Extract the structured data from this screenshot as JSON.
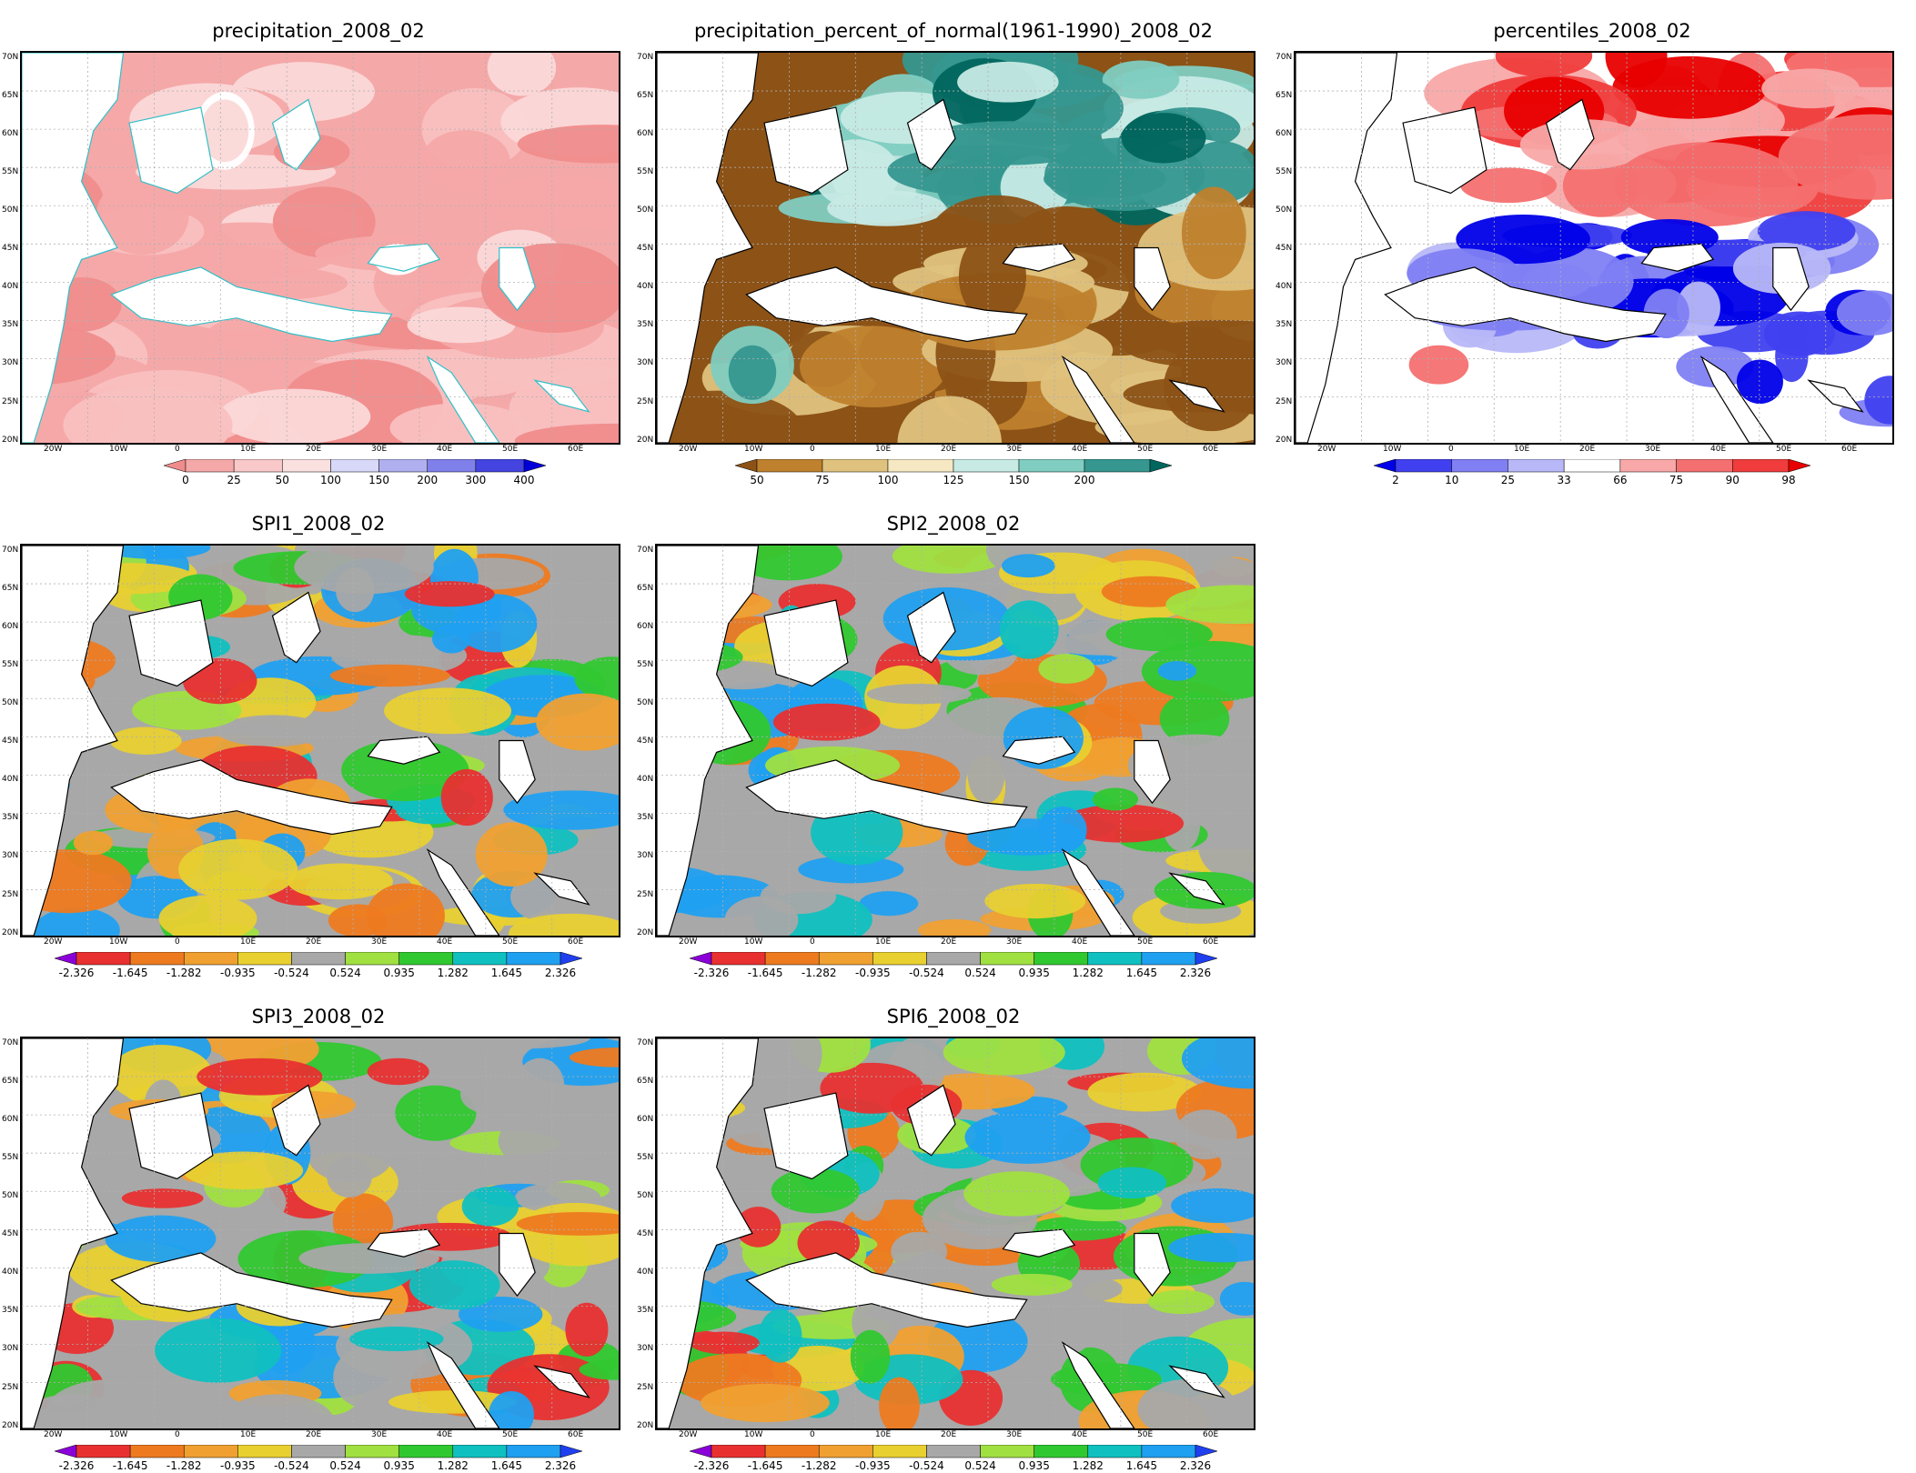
{
  "lat_ticks": [
    "70N",
    "65N",
    "60N",
    "55N",
    "50N",
    "45N",
    "40N",
    "35N",
    "30N",
    "25N",
    "20N"
  ],
  "lon_ticks": [
    "20W",
    "10W",
    "0",
    "10E",
    "20E",
    "30E",
    "40E",
    "50E",
    "60E"
  ],
  "panels": [
    {
      "id": "precip",
      "title": "precipitation_2008_02",
      "palette": "precip",
      "colorbar": {
        "labels": [
          "0",
          "25",
          "50",
          "100",
          "150",
          "200",
          "300",
          "400"
        ],
        "colors": [
          "#f08c8c",
          "#f5a8a8",
          "#f9c8c8",
          "#fbe0e0",
          "#d8d8f8",
          "#b0b0f0",
          "#8080ea",
          "#4444e0",
          "#0000d8"
        ]
      }
    },
    {
      "id": "percent",
      "title": "precipitation_percent_of_normal(1961-1990)_2008_02",
      "palette": "percent",
      "colorbar": {
        "labels": [
          "50",
          "75",
          "100",
          "125",
          "150",
          "200"
        ],
        "colors": [
          "#8c5216",
          "#bf812d",
          "#dfc27d",
          "#f6e8c3",
          "#c7eae5",
          "#80cdc1",
          "#35978f",
          "#01665e"
        ]
      }
    },
    {
      "id": "percentiles",
      "title": "percentiles_2008_02",
      "palette": "percentiles",
      "colorbar": {
        "labels": [
          "2",
          "10",
          "25",
          "33",
          "66",
          "75",
          "90",
          "98"
        ],
        "colors": [
          "#0000e8",
          "#4040f0",
          "#8080f4",
          "#b8b8f8",
          "#ffffff",
          "#f8a8a8",
          "#f47070",
          "#f03c3c",
          "#e80000"
        ]
      }
    },
    {
      "id": "spi1",
      "title": "SPI1_2008_02",
      "palette": "spi",
      "colorbar": {
        "labels": [
          "-2.326",
          "-1.645",
          "-1.282",
          "-0.935",
          "-0.524",
          "0.524",
          "0.935",
          "1.282",
          "1.645",
          "2.326"
        ],
        "colors": [
          "#8b00d8",
          "#e83030",
          "#ee7a20",
          "#f0a030",
          "#e8d030",
          "#a8a8a8",
          "#a0e040",
          "#30c830",
          "#10c0c0",
          "#20a0f0",
          "#2040f0"
        ]
      }
    },
    {
      "id": "spi2",
      "title": "SPI2_2008_02",
      "palette": "spi",
      "colorbar": {
        "labels": [
          "-2.326",
          "-1.645",
          "-1.282",
          "-0.935",
          "-0.524",
          "0.524",
          "0.935",
          "1.282",
          "1.645",
          "2.326"
        ],
        "colors": [
          "#8b00d8",
          "#e83030",
          "#ee7a20",
          "#f0a030",
          "#e8d030",
          "#a8a8a8",
          "#a0e040",
          "#30c830",
          "#10c0c0",
          "#20a0f0",
          "#2040f0"
        ]
      }
    },
    {
      "id": "spi3",
      "title": "SPI3_2008_02",
      "palette": "spi",
      "colorbar": {
        "labels": [
          "-2.326",
          "-1.645",
          "-1.282",
          "-0.935",
          "-0.524",
          "0.524",
          "0.935",
          "1.282",
          "1.645",
          "2.326"
        ],
        "colors": [
          "#8b00d8",
          "#e83030",
          "#ee7a20",
          "#f0a030",
          "#e8d030",
          "#a8a8a8",
          "#a0e040",
          "#30c830",
          "#10c0c0",
          "#20a0f0",
          "#2040f0"
        ]
      }
    },
    {
      "id": "spi6",
      "title": "SPI6_2008_02",
      "palette": "spi",
      "colorbar": {
        "labels": [
          "-2.326",
          "-1.645",
          "-1.282",
          "-0.935",
          "-0.524",
          "0.524",
          "0.935",
          "1.282",
          "1.645",
          "2.326"
        ],
        "colors": [
          "#8b00d8",
          "#e83030",
          "#ee7a20",
          "#f0a030",
          "#e8d030",
          "#a8a8a8",
          "#a0e040",
          "#30c830",
          "#10c0c0",
          "#20a0f0",
          "#2040f0"
        ]
      }
    }
  ]
}
